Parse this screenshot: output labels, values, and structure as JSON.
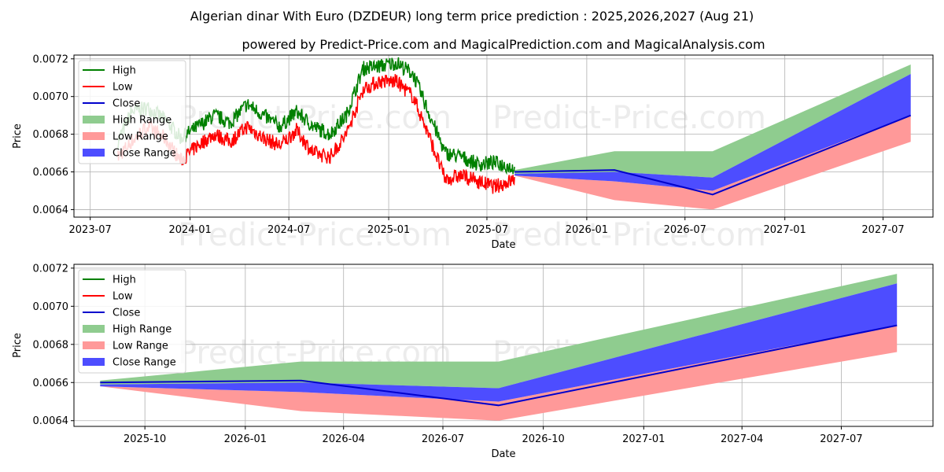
{
  "title": "Algerian dinar With Euro (DZDEUR) long term price prediction : 2025,2026,2027 (Aug 21)",
  "subtitle": "powered by Predict-Price.com and MagicalPrediction.com and MagicalAnalysis.com",
  "watermark": "Predict-Price.com",
  "colors": {
    "high": "#008000",
    "low": "#ff0000",
    "close": "#0000cc",
    "high_range": "#8fcc8f",
    "low_range": "#ff9999",
    "close_range": "#4d4dff"
  },
  "legend": [
    {
      "key": "high",
      "label": "High"
    },
    {
      "key": "low",
      "label": "Low"
    },
    {
      "key": "close",
      "label": "Close"
    },
    {
      "key": "high_range",
      "label": "High Range"
    },
    {
      "key": "low_range",
      "label": "Low Range"
    },
    {
      "key": "close_range",
      "label": "Close Range"
    }
  ],
  "chart_data": [
    {
      "type": "line",
      "name": "history-and-forecast",
      "xlabel": "Date",
      "ylabel": "Price",
      "xlim": [
        "2023-06-01",
        "2027-10-01"
      ],
      "ylim": [
        0.00636,
        0.00722
      ],
      "xticks": [
        "2023-07-01",
        "2024-01-01",
        "2024-07-01",
        "2025-01-01",
        "2025-07-01",
        "2026-01-01",
        "2026-07-01",
        "2027-01-01",
        "2027-07-01"
      ],
      "xtick_labels": [
        "2023-07",
        "2024-01",
        "2024-07",
        "2025-01",
        "2025-07",
        "2026-01",
        "2026-07",
        "2027-01",
        "2027-07"
      ],
      "yticks": [
        0.0064,
        0.0066,
        0.0068,
        0.007,
        0.0072
      ],
      "ytick_labels": [
        "0.0064",
        "0.0066",
        "0.0068",
        "0.0070",
        "0.0072"
      ],
      "grid": true,
      "legend_position": "top-left",
      "history": {
        "dates": [
          "2023-08-21",
          "2023-09-15",
          "2023-10-15",
          "2023-11-15",
          "2023-12-15",
          "2024-01-15",
          "2024-02-15",
          "2024-03-15",
          "2024-04-15",
          "2024-05-15",
          "2024-06-15",
          "2024-07-15",
          "2024-08-15",
          "2024-09-15",
          "2024-10-15",
          "2024-11-15",
          "2024-12-15",
          "2025-01-15",
          "2025-02-15",
          "2025-03-15",
          "2025-04-15",
          "2025-05-15",
          "2025-06-15",
          "2025-07-15",
          "2025-08-21"
        ],
        "high": [
          0.00676,
          0.00692,
          0.00694,
          0.00688,
          0.00678,
          0.00684,
          0.0069,
          0.00686,
          0.00696,
          0.0069,
          0.00684,
          0.00692,
          0.00684,
          0.0068,
          0.0069,
          0.00715,
          0.00716,
          0.00718,
          0.00712,
          0.00692,
          0.0067,
          0.00668,
          0.00664,
          0.00665,
          0.00662
        ],
        "low": [
          0.00668,
          0.00676,
          0.00684,
          0.00678,
          0.00666,
          0.00674,
          0.0068,
          0.00676,
          0.00684,
          0.00678,
          0.00674,
          0.00682,
          0.0067,
          0.00668,
          0.0068,
          0.00704,
          0.00708,
          0.00708,
          0.007,
          0.0068,
          0.00656,
          0.00658,
          0.00655,
          0.00652,
          0.00656
        ]
      },
      "forecast": {
        "dates": [
          "2025-08-21",
          "2026-02-21",
          "2026-08-21",
          "2027-08-21"
        ],
        "close": [
          0.0066,
          0.00661,
          0.00648,
          0.0069
        ],
        "high_range": {
          "upper": [
            0.00661,
            0.00671,
            0.00671,
            0.00717
          ],
          "lower": [
            0.00659,
            0.0066,
            0.00657,
            0.00712
          ]
        },
        "close_range": {
          "upper": [
            0.00659,
            0.0066,
            0.00657,
            0.00712
          ],
          "lower": [
            0.00658,
            0.00655,
            0.0065,
            0.0069
          ]
        },
        "low_range": {
          "upper": [
            0.00658,
            0.00655,
            0.0065,
            0.0069
          ],
          "lower": [
            0.00658,
            0.00645,
            0.0064,
            0.00676
          ]
        }
      }
    },
    {
      "type": "area",
      "name": "forecast-zoom",
      "xlabel": "Date",
      "ylabel": "Price",
      "xlim": [
        "2025-07-28",
        "2027-09-23"
      ],
      "ylim": [
        0.00637,
        0.00722
      ],
      "xticks": [
        "2025-10-01",
        "2026-01-01",
        "2026-04-01",
        "2026-07-01",
        "2026-10-01",
        "2027-01-01",
        "2027-04-01",
        "2027-07-01"
      ],
      "xtick_labels": [
        "2025-10",
        "2026-01",
        "2026-04",
        "2026-07",
        "2026-10",
        "2027-01",
        "2027-04",
        "2027-07"
      ],
      "yticks": [
        0.0064,
        0.0066,
        0.0068,
        0.007,
        0.0072
      ],
      "ytick_labels": [
        "0.0064",
        "0.0066",
        "0.0068",
        "0.0070",
        "0.0072"
      ],
      "grid": true,
      "legend_position": "top-left",
      "forecast": {
        "dates": [
          "2025-08-21",
          "2026-02-21",
          "2026-08-21",
          "2027-08-21"
        ],
        "close": [
          0.0066,
          0.00661,
          0.00648,
          0.0069
        ],
        "high_range": {
          "upper": [
            0.00661,
            0.00671,
            0.00671,
            0.00717
          ],
          "lower": [
            0.00659,
            0.0066,
            0.00657,
            0.00712
          ]
        },
        "close_range": {
          "upper": [
            0.00659,
            0.0066,
            0.00657,
            0.00712
          ],
          "lower": [
            0.00658,
            0.00655,
            0.0065,
            0.0069
          ]
        },
        "low_range": {
          "upper": [
            0.00658,
            0.00655,
            0.0065,
            0.0069
          ],
          "lower": [
            0.00658,
            0.00645,
            0.0064,
            0.00676
          ]
        }
      }
    }
  ]
}
